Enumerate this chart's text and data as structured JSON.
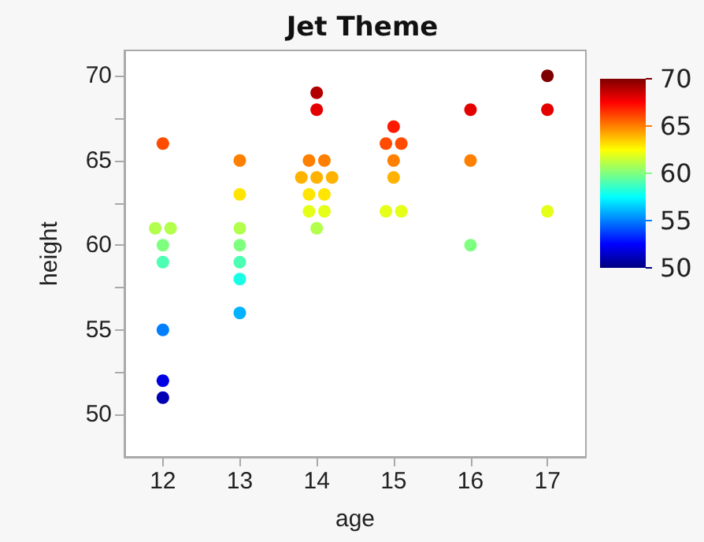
{
  "chart_data": {
    "type": "scatter",
    "title": "Jet Theme",
    "xlabel": "age",
    "ylabel": "height",
    "x": [
      12,
      11.9,
      12.1,
      12,
      12,
      12,
      12,
      12,
      13,
      13,
      13,
      13,
      13,
      13,
      13,
      14,
      14,
      13.9,
      14.1,
      13.8,
      14,
      14.2,
      13.9,
      14.1,
      13.9,
      14.1,
      14,
      15,
      14.9,
      15.1,
      15,
      15,
      14.9,
      15.1,
      16,
      16,
      16,
      17,
      17,
      17
    ],
    "values": [
      66,
      61,
      61,
      60,
      59,
      55,
      52,
      51,
      65,
      63,
      61,
      60,
      59,
      58,
      56,
      69,
      68,
      65,
      65,
      64,
      64,
      64,
      63,
      63,
      62,
      62,
      61,
      67,
      66,
      66,
      65,
      64,
      62,
      62,
      68,
      65,
      60,
      70,
      68,
      62
    ],
    "cvalues": [
      66,
      61,
      61,
      60,
      59,
      55,
      52,
      51,
      65,
      63,
      61,
      60,
      59,
      58,
      56,
      69,
      68,
      65,
      65,
      64,
      64,
      64,
      63,
      63,
      62,
      62,
      61,
      67,
      66,
      66,
      65,
      64,
      62,
      62,
      68,
      65,
      60,
      70,
      68,
      62
    ],
    "clim": [
      50,
      70
    ],
    "cticks": [
      50,
      55,
      60,
      65,
      70
    ],
    "xlim": [
      11.5,
      17.5
    ],
    "xticks": [
      12,
      13,
      14,
      15,
      16,
      17
    ],
    "ylim": [
      47.5,
      71.5
    ],
    "yticks": [
      50,
      {
        "value": 52.5,
        "label": null
      },
      55,
      {
        "value": 57.5,
        "label": null
      },
      60,
      {
        "value": 62.5,
        "label": null
      },
      65,
      {
        "value": 67.5,
        "label": null
      },
      70
    ],
    "grid": false,
    "marker": "circle"
  }
}
